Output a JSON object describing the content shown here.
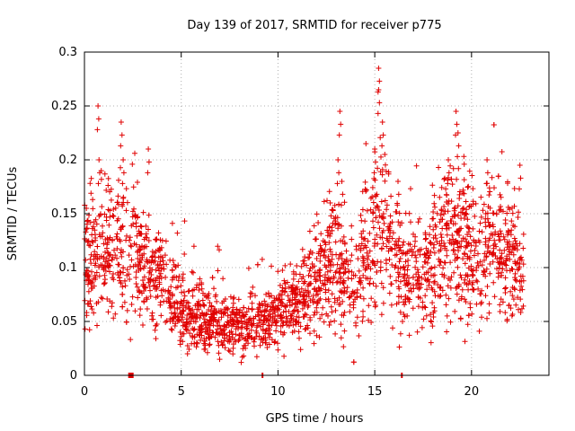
{
  "chart_data": {
    "type": "scatter",
    "title": "Day 139 of 2017, SRMTID for receiver p775",
    "xlabel": "GPS time / hours",
    "ylabel": "SRMTID / TECUs",
    "xlim": [
      0,
      24
    ],
    "ylim": [
      0,
      0.3
    ],
    "xticks": [
      0,
      5,
      10,
      15,
      20
    ],
    "yticks": [
      0,
      0.05,
      0.1,
      0.15,
      0.2,
      0.25,
      0.3
    ],
    "ytick_labels": [
      "0",
      "0.05",
      "0.1",
      "0.15",
      "0.2",
      "0.25",
      "0.3"
    ],
    "grid": true,
    "marker": "+",
    "series_color": "#e00000",
    "trend": [
      {
        "x": 0.0,
        "y": 0.1
      },
      {
        "x": 0.5,
        "y": 0.11
      },
      {
        "x": 1.0,
        "y": 0.12
      },
      {
        "x": 1.5,
        "y": 0.12
      },
      {
        "x": 2.0,
        "y": 0.11
      },
      {
        "x": 2.5,
        "y": 0.12
      },
      {
        "x": 3.0,
        "y": 0.1
      },
      {
        "x": 3.5,
        "y": 0.095
      },
      {
        "x": 4.0,
        "y": 0.09
      },
      {
        "x": 4.5,
        "y": 0.075
      },
      {
        "x": 5.0,
        "y": 0.06
      },
      {
        "x": 5.5,
        "y": 0.055
      },
      {
        "x": 6.0,
        "y": 0.055
      },
      {
        "x": 6.5,
        "y": 0.05
      },
      {
        "x": 7.0,
        "y": 0.048
      },
      {
        "x": 7.5,
        "y": 0.045
      },
      {
        "x": 8.0,
        "y": 0.045
      },
      {
        "x": 8.5,
        "y": 0.045
      },
      {
        "x": 9.0,
        "y": 0.048
      },
      {
        "x": 9.5,
        "y": 0.052
      },
      {
        "x": 10.0,
        "y": 0.058
      },
      {
        "x": 10.5,
        "y": 0.062
      },
      {
        "x": 11.0,
        "y": 0.068
      },
      {
        "x": 11.5,
        "y": 0.075
      },
      {
        "x": 12.0,
        "y": 0.085
      },
      {
        "x": 12.5,
        "y": 0.1
      },
      {
        "x": 13.0,
        "y": 0.12
      },
      {
        "x": 13.5,
        "y": 0.09
      },
      {
        "x": 14.0,
        "y": 0.08
      },
      {
        "x": 14.5,
        "y": 0.12
      },
      {
        "x": 15.0,
        "y": 0.14
      },
      {
        "x": 15.5,
        "y": 0.13
      },
      {
        "x": 16.0,
        "y": 0.11
      },
      {
        "x": 16.5,
        "y": 0.09
      },
      {
        "x": 17.0,
        "y": 0.095
      },
      {
        "x": 17.5,
        "y": 0.1
      },
      {
        "x": 18.0,
        "y": 0.11
      },
      {
        "x": 18.5,
        "y": 0.12
      },
      {
        "x": 19.0,
        "y": 0.13
      },
      {
        "x": 19.5,
        "y": 0.12
      },
      {
        "x": 20.0,
        "y": 0.115
      },
      {
        "x": 20.5,
        "y": 0.12
      },
      {
        "x": 21.0,
        "y": 0.12
      },
      {
        "x": 21.5,
        "y": 0.115
      },
      {
        "x": 22.0,
        "y": 0.11
      },
      {
        "x": 22.5,
        "y": 0.1
      },
      {
        "x": 22.7,
        "y": 0.09
      }
    ],
    "x_end": 22.7,
    "peaks": [
      {
        "x": 0.7,
        "y": 0.25
      },
      {
        "x": 0.75,
        "y": 0.2
      },
      {
        "x": 1.9,
        "y": 0.235
      },
      {
        "x": 2.0,
        "y": 0.2
      },
      {
        "x": 3.3,
        "y": 0.21
      },
      {
        "x": 13.2,
        "y": 0.245
      },
      {
        "x": 13.1,
        "y": 0.2
      },
      {
        "x": 13.3,
        "y": 0.18
      },
      {
        "x": 15.2,
        "y": 0.285
      },
      {
        "x": 15.2,
        "y": 0.265
      },
      {
        "x": 15.4,
        "y": 0.235
      },
      {
        "x": 15.0,
        "y": 0.21
      },
      {
        "x": 19.2,
        "y": 0.245
      },
      {
        "x": 19.3,
        "y": 0.225
      },
      {
        "x": 18.8,
        "y": 0.2
      },
      {
        "x": 20.8,
        "y": 0.2
      },
      {
        "x": 22.5,
        "y": 0.195
      },
      {
        "x": 0.1,
        "y": 0.155
      },
      {
        "x": 12.7,
        "y": 0.16
      },
      {
        "x": 16.2,
        "y": 0.18
      }
    ],
    "gaps_on_axis": [
      2.4,
      9.2,
      16.4
    ],
    "point_count": 2400
  }
}
